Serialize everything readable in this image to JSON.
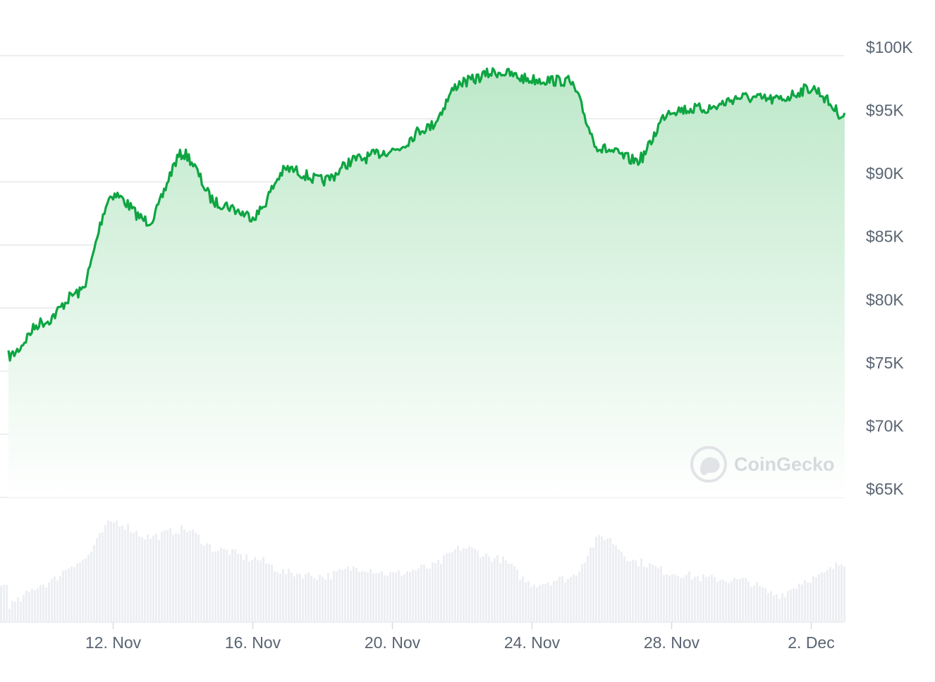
{
  "chart_data": {
    "type": "area",
    "series": [
      {
        "x": [
          "2024-11-09",
          "2024-11-10",
          "2024-11-11",
          "2024-11-12",
          "2024-11-13",
          "2024-11-14",
          "2024-11-15",
          "2024-11-16",
          "2024-11-17",
          "2024-11-18",
          "2024-11-19",
          "2024-11-20",
          "2024-11-21",
          "2024-11-22",
          "2024-11-23",
          "2024-11-24",
          "2024-11-25",
          "2024-11-26",
          "2024-11-27",
          "2024-11-28",
          "2024-11-29",
          "2024-11-30",
          "2024-12-01",
          "2024-12-02",
          "2024-12-03"
        ],
        "values": [
          76200,
          78900,
          81200,
          89000,
          86900,
          92200,
          88300,
          87300,
          91000,
          90100,
          91800,
          92500,
          94300,
          97900,
          98700,
          98100,
          98000,
          92600,
          91700,
          95700,
          95800,
          96700,
          96500,
          97400,
          95200
        ]
      }
    ],
    "volume": [
      0.16,
      0.35,
      0.55,
      0.92,
      0.78,
      0.85,
      0.66,
      0.58,
      0.45,
      0.42,
      0.5,
      0.44,
      0.5,
      0.68,
      0.58,
      0.35,
      0.4,
      0.78,
      0.55,
      0.45,
      0.4,
      0.38,
      0.25,
      0.4,
      0.55
    ],
    "y_ticks": [
      "$100K",
      "$95K",
      "$90K",
      "$85K",
      "$80K",
      "$75K",
      "$70K",
      "$65K"
    ],
    "y_tick_values": [
      100000,
      95000,
      90000,
      85000,
      80000,
      75000,
      70000,
      65000
    ],
    "x_ticks": [
      "12. Nov",
      "16. Nov",
      "20. Nov",
      "24. Nov",
      "28. Nov",
      "2. Dec"
    ],
    "x_tick_dates": [
      "2024-11-12",
      "2024-11-16",
      "2024-11-20",
      "2024-11-24",
      "2024-11-28",
      "2024-12-02"
    ],
    "ylim": [
      65000,
      100000
    ],
    "grid": true,
    "colors": {
      "line": "#0ea542",
      "fill_top": "#bde8c9",
      "fill_bottom": "#ffffff",
      "volume": "#eceef2",
      "grid": "#e6e8eb"
    }
  },
  "watermark": {
    "text": "CoinGecko"
  }
}
